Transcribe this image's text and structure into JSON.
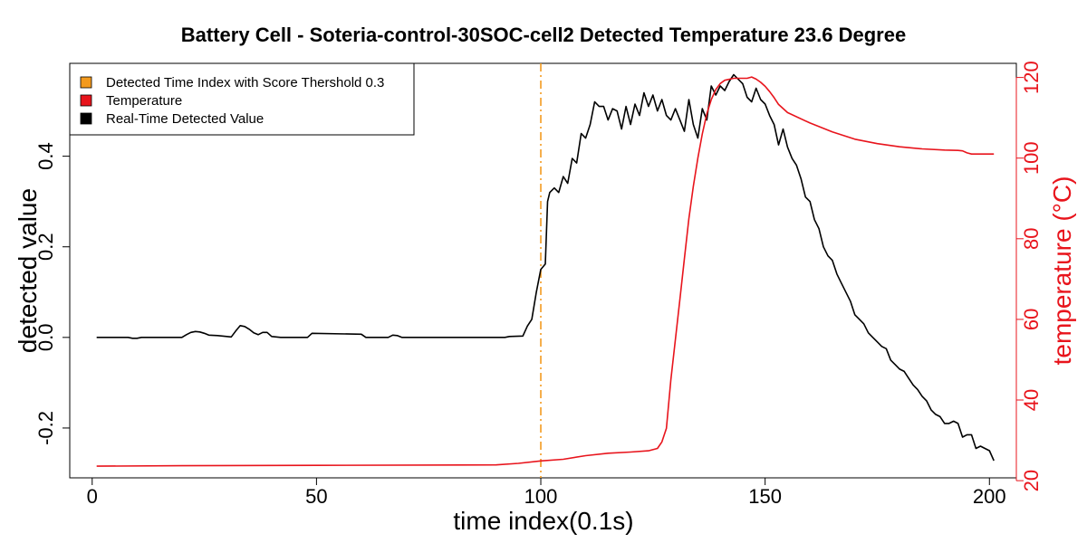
{
  "chart_data": {
    "type": "line",
    "title": "Battery Cell - Soteria-control-30SOC-cell2 Detected Temperature 23.6 Degree",
    "xlabel": "time index(0.1s)",
    "ylabel_left": "detected value",
    "ylabel_right": "temperature (°C)",
    "xlim": [
      -5,
      206
    ],
    "ylim_left": [
      -0.31,
      0.605
    ],
    "ylim_right": [
      20.7,
      123.5
    ],
    "x_ticks": [
      0,
      50,
      100,
      150,
      200
    ],
    "y_left_ticks": [
      -0.2,
      0.0,
      0.2,
      0.4
    ],
    "y_left_tick_labels": [
      "-0.2",
      "0.0",
      "0.2",
      "0.4"
    ],
    "y_right_ticks": [
      20,
      40,
      60,
      80,
      100,
      120
    ],
    "y_right_tick_labels": [
      "20",
      "40",
      "60",
      "80",
      "100",
      "120"
    ],
    "grid": false,
    "legend_position": "top-left",
    "legend": [
      {
        "label": "Detected Time Index with Score Thershold 0.3",
        "color": "#f39a1e"
      },
      {
        "label": "Temperature",
        "color": "#e8141c"
      },
      {
        "label": "Real-Time Detected Value",
        "color": "#000000"
      }
    ],
    "threshold_x": 100,
    "threshold_color": "#f39a1e",
    "series": [
      {
        "name": "Real-Time Detected Value",
        "axis": "left",
        "color": "#000000",
        "points": [
          [
            1,
            0
          ],
          [
            8,
            0
          ],
          [
            9,
            -0.002
          ],
          [
            10,
            -0.002
          ],
          [
            11,
            0
          ],
          [
            20,
            0
          ],
          [
            21,
            0.006
          ],
          [
            22,
            0.011
          ],
          [
            23,
            0.013
          ],
          [
            24,
            0.012
          ],
          [
            25,
            0.009
          ],
          [
            26,
            0.005
          ],
          [
            28,
            0.004
          ],
          [
            30,
            0.002
          ],
          [
            31,
            0.001
          ],
          [
            32,
            0.014
          ],
          [
            33,
            0.026
          ],
          [
            34,
            0.024
          ],
          [
            35,
            0.018
          ],
          [
            36,
            0.01
          ],
          [
            37,
            0.006
          ],
          [
            38,
            0.011
          ],
          [
            39,
            0.011
          ],
          [
            40,
            0.002
          ],
          [
            42,
            0
          ],
          [
            48,
            0
          ],
          [
            49,
            0.009
          ],
          [
            60,
            0.007
          ],
          [
            61,
            0
          ],
          [
            66,
            0
          ],
          [
            67,
            0.005
          ],
          [
            68,
            0.004
          ],
          [
            69,
            0
          ],
          [
            92,
            0
          ],
          [
            93,
            0.002
          ],
          [
            96,
            0.003
          ],
          [
            97,
            0.025
          ],
          [
            98,
            0.04
          ],
          [
            99,
            0.1
          ],
          [
            100,
            0.15
          ],
          [
            101,
            0.162
          ],
          [
            101.5,
            0.3
          ],
          [
            102,
            0.32
          ],
          [
            103,
            0.33
          ],
          [
            104,
            0.32
          ],
          [
            105,
            0.355
          ],
          [
            106,
            0.34
          ],
          [
            107,
            0.395
          ],
          [
            108,
            0.385
          ],
          [
            109,
            0.45
          ],
          [
            110,
            0.44
          ],
          [
            111,
            0.47
          ],
          [
            112,
            0.52
          ],
          [
            113,
            0.51
          ],
          [
            114,
            0.51
          ],
          [
            115,
            0.48
          ],
          [
            116,
            0.505
          ],
          [
            117,
            0.5
          ],
          [
            118,
            0.46
          ],
          [
            119,
            0.51
          ],
          [
            120,
            0.47
          ],
          [
            121,
            0.515
          ],
          [
            122,
            0.49
          ],
          [
            123,
            0.54
          ],
          [
            124,
            0.51
          ],
          [
            125,
            0.535
          ],
          [
            126,
            0.5
          ],
          [
            127,
            0.525
          ],
          [
            128,
            0.49
          ],
          [
            129,
            0.48
          ],
          [
            130,
            0.505
          ],
          [
            131,
            0.48
          ],
          [
            132,
            0.455
          ],
          [
            133,
            0.525
          ],
          [
            134,
            0.47
          ],
          [
            135,
            0.44
          ],
          [
            136,
            0.505
          ],
          [
            137,
            0.48
          ],
          [
            138,
            0.555
          ],
          [
            139,
            0.535
          ],
          [
            140,
            0.555
          ],
          [
            141,
            0.545
          ],
          [
            142,
            0.565
          ],
          [
            143,
            0.58
          ],
          [
            144,
            0.57
          ],
          [
            145,
            0.56
          ],
          [
            146,
            0.53
          ],
          [
            147,
            0.52
          ],
          [
            148,
            0.55
          ],
          [
            149,
            0.525
          ],
          [
            150,
            0.515
          ],
          [
            151,
            0.49
          ],
          [
            152,
            0.47
          ],
          [
            153,
            0.425
          ],
          [
            154,
            0.46
          ],
          [
            155,
            0.42
          ],
          [
            156,
            0.395
          ],
          [
            157,
            0.38
          ],
          [
            158,
            0.35
          ],
          [
            159,
            0.31
          ],
          [
            160,
            0.3
          ],
          [
            161,
            0.26
          ],
          [
            162,
            0.24
          ],
          [
            163,
            0.2
          ],
          [
            164,
            0.18
          ],
          [
            165,
            0.17
          ],
          [
            166,
            0.14
          ],
          [
            167,
            0.12
          ],
          [
            168,
            0.1
          ],
          [
            169,
            0.08
          ],
          [
            170,
            0.05
          ],
          [
            171,
            0.04
          ],
          [
            172,
            0.03
          ],
          [
            173,
            0.01
          ],
          [
            174,
            0
          ],
          [
            175,
            -0.01
          ],
          [
            176,
            -0.02
          ],
          [
            177,
            -0.025
          ],
          [
            178,
            -0.05
          ],
          [
            179,
            -0.06
          ],
          [
            180,
            -0.07
          ],
          [
            181,
            -0.075
          ],
          [
            182,
            -0.09
          ],
          [
            183,
            -0.105
          ],
          [
            184,
            -0.115
          ],
          [
            185,
            -0.13
          ],
          [
            186,
            -0.14
          ],
          [
            187,
            -0.16
          ],
          [
            188,
            -0.17
          ],
          [
            189,
            -0.175
          ],
          [
            190,
            -0.19
          ],
          [
            191,
            -0.19
          ],
          [
            192,
            -0.185
          ],
          [
            193,
            -0.19
          ],
          [
            194,
            -0.22
          ],
          [
            195,
            -0.215
          ],
          [
            196,
            -0.215
          ],
          [
            197,
            -0.245
          ],
          [
            198,
            -0.24
          ],
          [
            199,
            -0.245
          ],
          [
            200,
            -0.25
          ],
          [
            201,
            -0.272
          ]
        ]
      },
      {
        "name": "Temperature",
        "axis": "right",
        "color": "#e8141c",
        "points": [
          [
            1,
            23.6
          ],
          [
            20,
            23.7
          ],
          [
            50,
            23.8
          ],
          [
            90,
            23.9
          ],
          [
            95,
            24.3
          ],
          [
            100,
            24.9
          ],
          [
            105,
            25.3
          ],
          [
            110,
            26.2
          ],
          [
            115,
            26.8
          ],
          [
            120,
            27.1
          ],
          [
            124,
            27.4
          ],
          [
            126,
            28.0
          ],
          [
            127,
            29.6
          ],
          [
            128,
            33
          ],
          [
            129,
            45
          ],
          [
            130,
            55
          ],
          [
            131,
            65
          ],
          [
            132,
            75
          ],
          [
            133,
            85
          ],
          [
            134,
            93
          ],
          [
            135,
            100
          ],
          [
            136,
            106
          ],
          [
            137,
            111
          ],
          [
            138,
            114.5
          ],
          [
            139,
            117
          ],
          [
            140,
            118.5
          ],
          [
            141,
            119.3
          ],
          [
            143,
            119.8
          ],
          [
            146,
            119.8
          ],
          [
            147,
            120.1
          ],
          [
            148,
            119.6
          ],
          [
            149,
            118.8
          ],
          [
            150,
            117.8
          ],
          [
            151,
            116.5
          ],
          [
            152,
            115
          ],
          [
            153,
            113.3
          ],
          [
            155,
            111.3
          ],
          [
            160,
            108.7
          ],
          [
            165,
            106.5
          ],
          [
            170,
            104.7
          ],
          [
            175,
            103.6
          ],
          [
            180,
            102.8
          ],
          [
            185,
            102.3
          ],
          [
            190,
            102.0
          ],
          [
            193,
            101.9
          ],
          [
            194,
            101.8
          ],
          [
            195,
            101.3
          ],
          [
            196,
            101.0
          ],
          [
            201,
            101.0
          ]
        ]
      }
    ]
  }
}
